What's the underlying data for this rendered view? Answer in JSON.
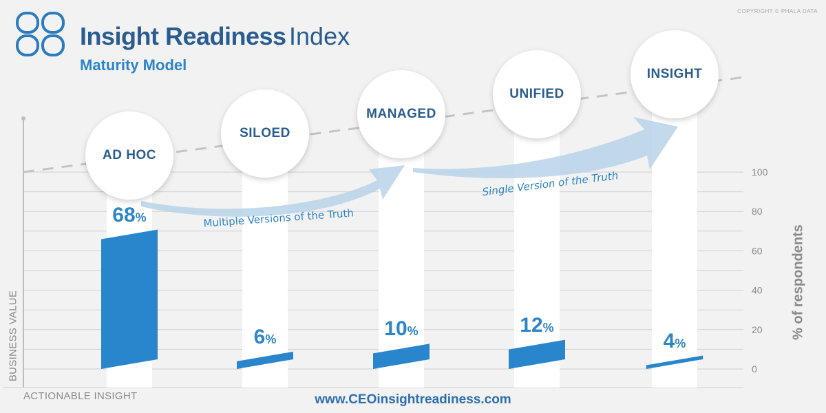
{
  "header": {
    "title_bold": "Insight Readiness",
    "title_light": "Index",
    "subtitle": "Maturity Model",
    "copyright": "COPYRIGHT © PHALA DATA",
    "logo_icon": "quatrefoil-logo-icon"
  },
  "footer": {
    "url": "www.CEOinsightreadiness.com",
    "x_axis_label": "ACTIONABLE INSIGHT",
    "y_axis_label_left": "BUSINESS VALUE"
  },
  "arrows": {
    "first": "Multiple Versions of the Truth",
    "second": "Single Version of the Truth"
  },
  "colors": {
    "bar": "#2a86cc",
    "title": "#2a5d8f",
    "accent": "#2d85c8",
    "arrow": "#b8d3ea",
    "grid": "#cfcfcf",
    "axis_text": "#8a8a8a"
  },
  "chart_data": {
    "type": "bar",
    "title": "",
    "ylabel": "% of respondents",
    "ylim": [
      0,
      100
    ],
    "yticks": [
      "0",
      "20",
      "40",
      "60",
      "80",
      "100"
    ],
    "grid": true,
    "categories": [
      "AD HOC",
      "SILOED",
      "MANAGED",
      "UNIFIED",
      "INSIGHT"
    ],
    "values": [
      68,
      6,
      10,
      12,
      4
    ],
    "value_labels": [
      "68",
      "6",
      "10",
      "12",
      "4"
    ],
    "unit": "%"
  }
}
